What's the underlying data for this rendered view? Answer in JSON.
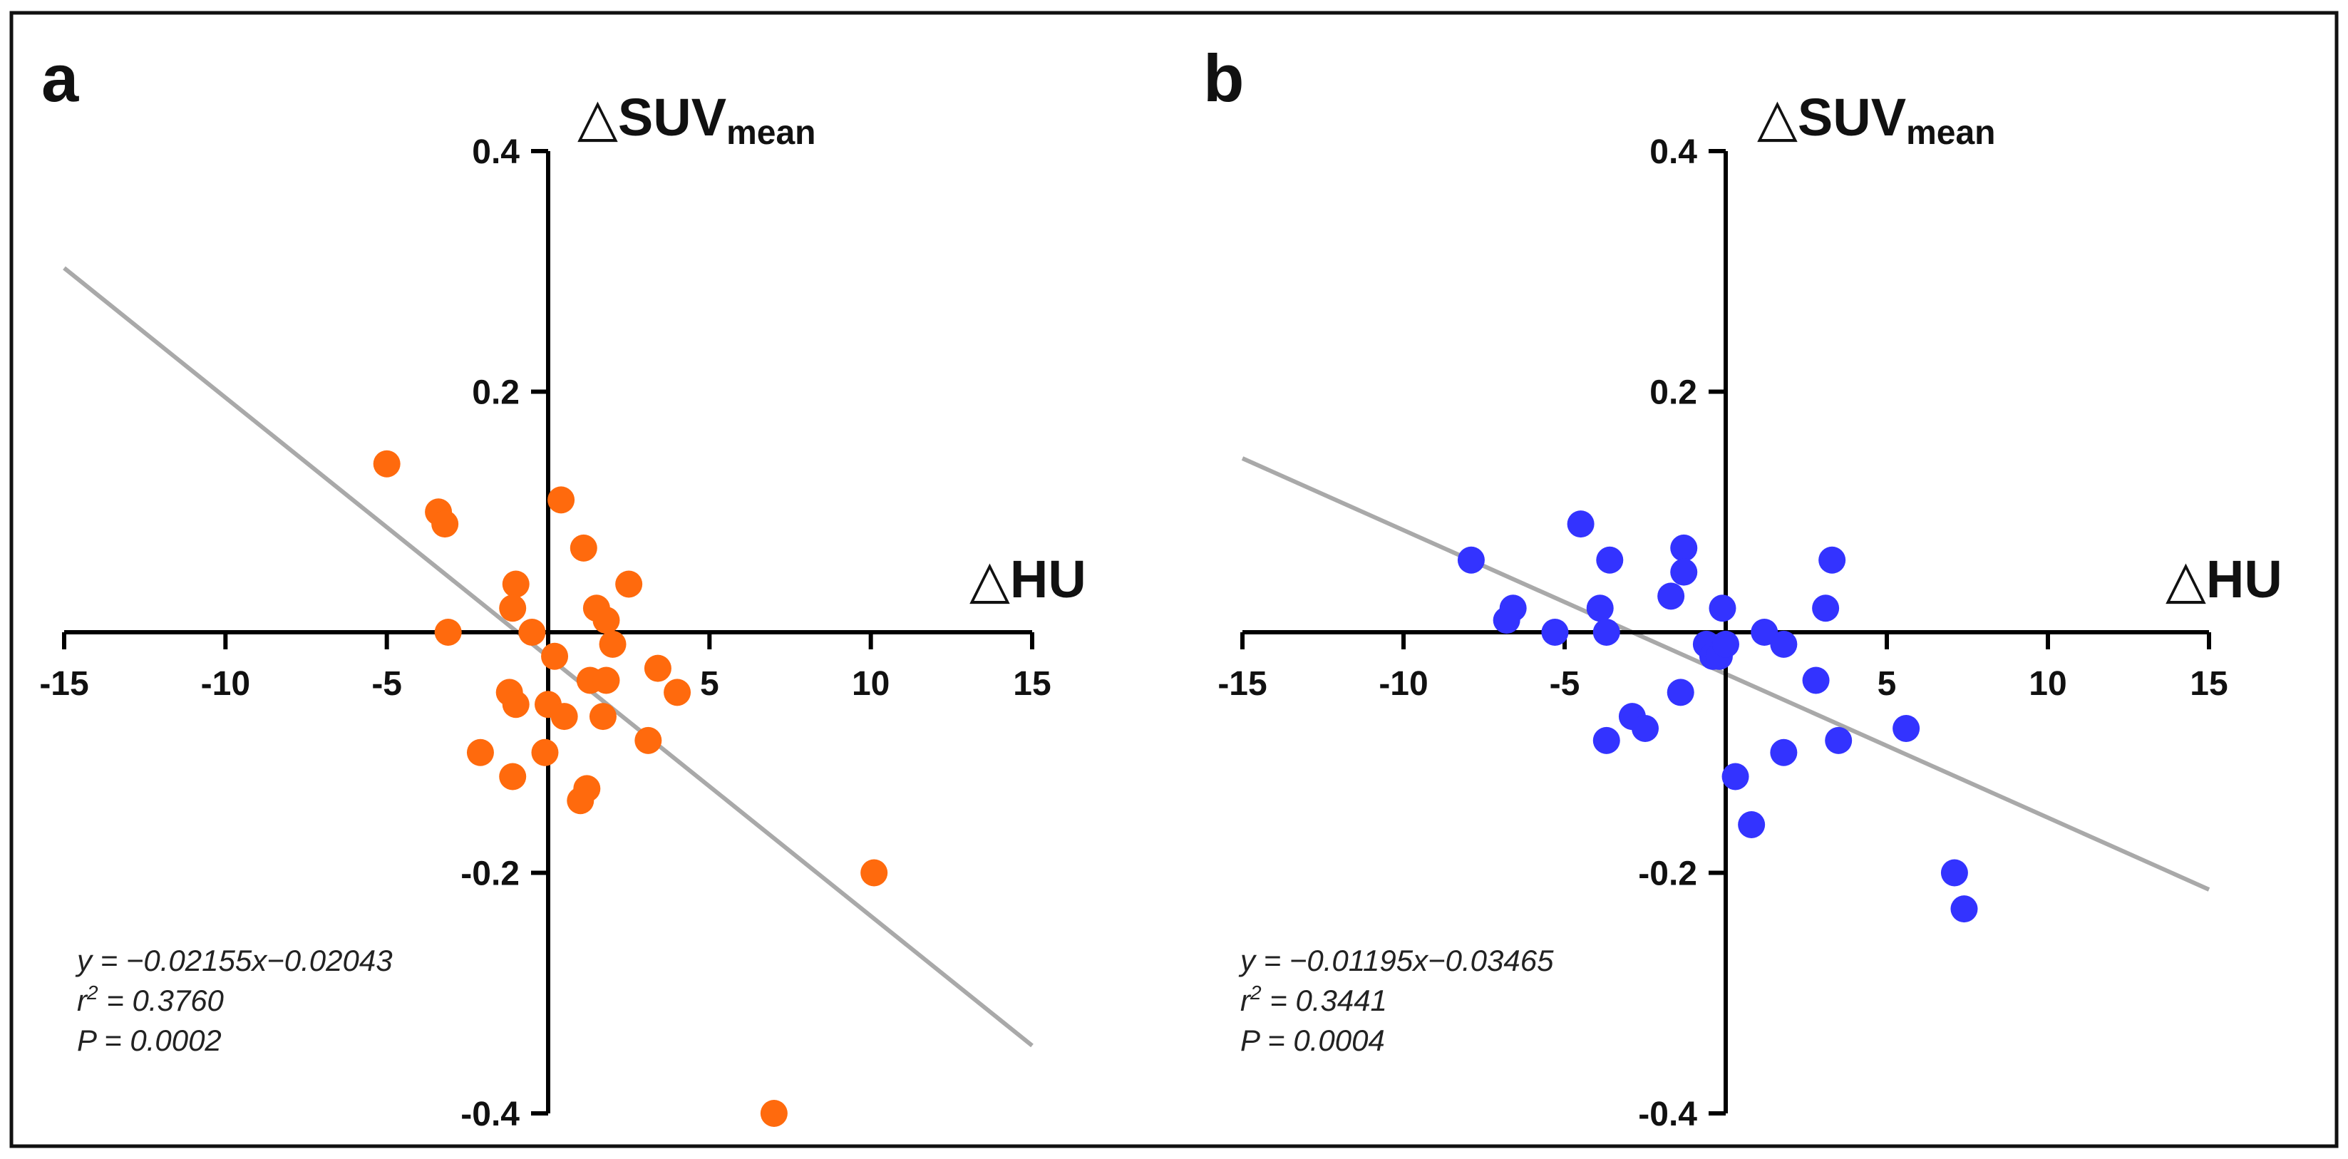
{
  "chart_data": [
    {
      "panel_label": "a",
      "type": "scatter",
      "xlabel": "HU",
      "ylabel_main": "SUV",
      "ylabel_sub": "mean",
      "delta_symbol": "△",
      "xlim": [
        -15,
        15
      ],
      "ylim": [
        -0.4,
        0.4
      ],
      "x_ticks": [
        -15,
        -10,
        -5,
        5,
        10,
        15
      ],
      "x_tick_labels": [
        "-15",
        "-10",
        "-5",
        "5",
        "10",
        "15"
      ],
      "y_ticks": [
        0.4,
        0.2,
        -0.2,
        -0.4
      ],
      "y_tick_labels": [
        "0.4",
        "0.2",
        "-0.2",
        "-0.4"
      ],
      "marker_color": "#ff6a0d",
      "line_color": "#a9a9a9",
      "fit": {
        "slope": -0.02155,
        "intercept": -0.02043
      },
      "equation": "y = −0.02155x−0.02043",
      "r2_prefix": "r",
      "r2_sup": "2",
      "r2_value": " = 0.3760",
      "p_text": "P = 0.0002",
      "points": [
        [
          -5.0,
          0.14
        ],
        [
          -3.4,
          0.1
        ],
        [
          -3.2,
          0.09
        ],
        [
          -3.1,
          0.0
        ],
        [
          -1.0,
          0.04
        ],
        [
          -1.1,
          0.02
        ],
        [
          -0.5,
          0.0
        ],
        [
          0.4,
          0.11
        ],
        [
          1.1,
          0.07
        ],
        [
          2.5,
          0.04
        ],
        [
          1.5,
          0.02
        ],
        [
          1.8,
          0.01
        ],
        [
          2.0,
          -0.01
        ],
        [
          0.2,
          -0.02
        ],
        [
          -1.2,
          -0.05
        ],
        [
          -1.0,
          -0.06
        ],
        [
          0.0,
          -0.06
        ],
        [
          0.5,
          -0.07
        ],
        [
          1.3,
          -0.04
        ],
        [
          1.8,
          -0.04
        ],
        [
          1.7,
          -0.07
        ],
        [
          3.4,
          -0.03
        ],
        [
          4.0,
          -0.05
        ],
        [
          3.1,
          -0.09
        ],
        [
          -2.1,
          -0.1
        ],
        [
          -0.1,
          -0.1
        ],
        [
          -1.1,
          -0.12
        ],
        [
          1.2,
          -0.13
        ],
        [
          1.0,
          -0.14
        ],
        [
          10.1,
          -0.2
        ],
        [
          7.0,
          -0.4
        ]
      ]
    },
    {
      "panel_label": "b",
      "type": "scatter",
      "xlabel": "HU",
      "ylabel_main": "SUV",
      "ylabel_sub": "mean",
      "delta_symbol": "△",
      "xlim": [
        -15,
        15
      ],
      "ylim": [
        -0.4,
        0.4
      ],
      "x_ticks": [
        -15,
        -10,
        -5,
        5,
        10,
        15
      ],
      "x_tick_labels": [
        "-15",
        "-10",
        "-5",
        "5",
        "10",
        "15"
      ],
      "y_ticks": [
        0.4,
        0.2,
        -0.2,
        -0.4
      ],
      "y_tick_labels": [
        "0.4",
        "0.2",
        "-0.2",
        "-0.4"
      ],
      "marker_color": "#3333ff",
      "line_color": "#a9a9a9",
      "fit": {
        "slope": -0.01195,
        "intercept": -0.03465
      },
      "equation": "y = −0.01195x−0.03465",
      "r2_prefix": "r",
      "r2_sup": "2",
      "r2_value": " = 0.3441",
      "p_text": "P = 0.0004",
      "points": [
        [
          -7.9,
          0.06
        ],
        [
          -6.6,
          0.02
        ],
        [
          -6.8,
          0.01
        ],
        [
          -5.3,
          0.0
        ],
        [
          -4.5,
          0.09
        ],
        [
          -3.6,
          0.06
        ],
        [
          -3.9,
          0.02
        ],
        [
          -3.7,
          0.0
        ],
        [
          -1.7,
          0.03
        ],
        [
          -1.3,
          0.07
        ],
        [
          -1.3,
          0.05
        ],
        [
          -0.1,
          0.02
        ],
        [
          3.1,
          0.02
        ],
        [
          3.3,
          0.06
        ],
        [
          1.2,
          0.0
        ],
        [
          -0.6,
          -0.01
        ],
        [
          -0.4,
          -0.02
        ],
        [
          -0.2,
          -0.02
        ],
        [
          0.0,
          -0.01
        ],
        [
          1.8,
          -0.01
        ],
        [
          2.8,
          -0.04
        ],
        [
          -1.4,
          -0.05
        ],
        [
          -2.9,
          -0.07
        ],
        [
          -2.5,
          -0.08
        ],
        [
          -3.7,
          -0.09
        ],
        [
          3.5,
          -0.09
        ],
        [
          5.6,
          -0.08
        ],
        [
          1.8,
          -0.1
        ],
        [
          0.3,
          -0.12
        ],
        [
          0.8,
          -0.16
        ],
        [
          7.1,
          -0.2
        ],
        [
          7.4,
          -0.23
        ]
      ]
    }
  ]
}
